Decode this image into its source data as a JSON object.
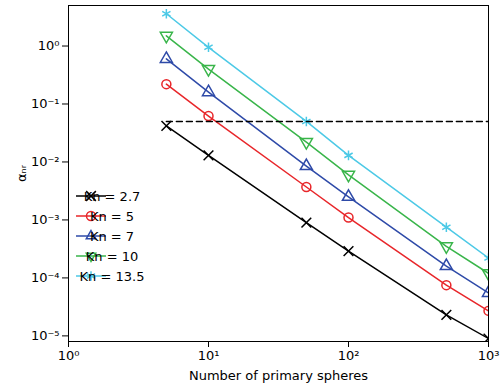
{
  "chart_data": {
    "type": "line",
    "log": true,
    "grid": false,
    "legend": "lower left",
    "x_label": "Number of primary spheres",
    "y_label": "αₙᵣ",
    "xlim": [
      1,
      1000
    ],
    "ylim": [
      8e-06,
      5
    ],
    "xticks": [
      {
        "value": 1,
        "label": "10⁰"
      },
      {
        "value": 10,
        "label": "10¹"
      },
      {
        "value": 100,
        "label": "10²"
      },
      {
        "value": 1000,
        "label": "10³"
      }
    ],
    "yticks": [
      {
        "value": 1e-05,
        "label": "10⁻⁵"
      },
      {
        "value": 0.0001,
        "label": "10⁻⁴"
      },
      {
        "value": 0.001,
        "label": "10⁻³"
      },
      {
        "value": 0.01,
        "label": "10⁻²"
      },
      {
        "value": 0.1,
        "label": "10⁻¹"
      },
      {
        "value": 1,
        "label": "10⁰"
      }
    ],
    "x": [
      5,
      10,
      50,
      100,
      500,
      1000
    ],
    "series": [
      {
        "name": "Kn = 2.7",
        "color": "#000000",
        "marker": "x",
        "line_style": "solid",
        "values": [
          0.042,
          0.013,
          0.0009,
          0.00029,
          2.3e-05,
          9e-06
        ]
      },
      {
        "name": "Kn = 5",
        "color": "#e8262a",
        "marker": "o",
        "line_style": "solid",
        "values": [
          0.22,
          0.062,
          0.0037,
          0.0011,
          7.5e-05,
          2.7e-05
        ]
      },
      {
        "name": "Kn = 7",
        "color": "#2e4aa8",
        "marker": "^",
        "line_style": "solid",
        "values": [
          0.6,
          0.16,
          0.0085,
          0.0025,
          0.00016,
          5.5e-05
        ]
      },
      {
        "name": "Kn = 10",
        "color": "#39b54a",
        "marker": "v",
        "line_style": "solid",
        "values": [
          1.5,
          0.4,
          0.022,
          0.006,
          0.00035,
          0.00012
        ]
      },
      {
        "name": "Kn = 13.5",
        "color": "#4cc9e6",
        "marker": "*",
        "line_style": "solid",
        "values": [
          3.6,
          0.95,
          0.05,
          0.013,
          0.00075,
          0.00022
        ]
      },
      {
        "color": "#000000",
        "line_style": "dashed",
        "x": [
          5,
          1000
        ],
        "values": [
          0.05,
          0.05
        ]
      }
    ]
  }
}
